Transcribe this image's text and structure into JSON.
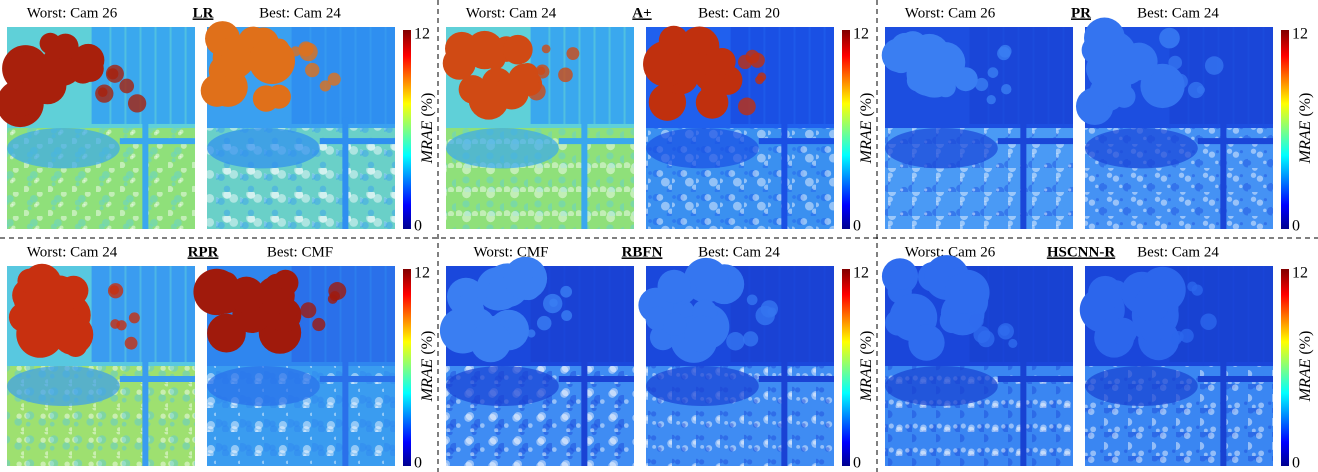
{
  "panels": [
    {
      "worst": "Worst: Cam 26",
      "method": "LR",
      "best": "Best: Cam 24",
      "colorbar": {
        "top": "12",
        "bottom": "0",
        "label_italic": "MRAE",
        "label_unit": "(%)"
      }
    },
    {
      "worst": "Worst: Cam 24",
      "method": "A+",
      "best": "Best: Cam 20",
      "colorbar": {
        "top": "12",
        "bottom": "0",
        "label_italic": "MRAE",
        "label_unit": "(%)"
      }
    },
    {
      "worst": "Worst: Cam 26",
      "method": "PR",
      "best": "Best: Cam 24",
      "colorbar": {
        "top": "12",
        "bottom": "0",
        "label_italic": "MRAE",
        "label_unit": "(%)"
      }
    },
    {
      "worst": "Worst: Cam 24",
      "method": "RPR",
      "best": "Best: CMF",
      "colorbar": {
        "top": "12",
        "bottom": "0",
        "label_italic": "MRAE",
        "label_unit": "(%)"
      }
    },
    {
      "worst": "Worst: CMF",
      "method": "RBFN",
      "best": "Best: Cam 24",
      "colorbar": {
        "top": "12",
        "bottom": "0",
        "label_italic": "MRAE",
        "label_unit": "(%)"
      }
    },
    {
      "worst": "Worst: Cam 26",
      "method": "HSCNN-R",
      "best": "Best: Cam 24",
      "colorbar": {
        "top": "12",
        "bottom": "0",
        "label_italic": "MRAE",
        "label_unit": "(%)"
      }
    }
  ]
}
